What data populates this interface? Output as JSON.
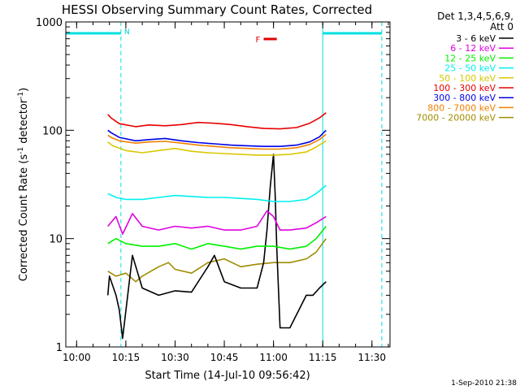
{
  "chart_data": {
    "type": "line",
    "title": "HESSI Observing Summary Count Rates, Corrected",
    "xlabel": "Start Time (14-Jul-10 09:56:42)",
    "ylabel_parts": [
      "Corrected Count Rate (s",
      "-1",
      " detector",
      "-1",
      ")"
    ],
    "y_scale": "log",
    "ylim": [
      1,
      1000
    ],
    "xlim": [
      "09:56:42",
      "11:35:30"
    ],
    "x_ticks": [
      "10:00",
      "10:15",
      "10:30",
      "10:45",
      "11:00",
      "11:15",
      "11:30"
    ],
    "y_ticks": [
      "1",
      "10",
      "100",
      "1000"
    ],
    "grid": false,
    "legend_position": "right",
    "legend_title": [
      "Det 1,3,4,5,6,9,",
      "Att 0"
    ],
    "footer": "1-Sep-2010 21:38",
    "annotations": {
      "night_bars": [
        {
          "from": "09:56:42",
          "to": "10:13:30",
          "label": "N"
        },
        {
          "from": "11:15:00",
          "to": "11:33:00",
          "label": ""
        }
      ],
      "flare_bar": {
        "from": "10:57:00",
        "to": "11:01:00",
        "label": "F"
      },
      "solid_lines": [
        "09:56:42",
        "11:15:00"
      ],
      "dashed_lines": [
        "10:13:30",
        "11:33:00"
      ]
    },
    "series": [
      {
        "name": "3 - 6 keV",
        "color": "#000000",
        "x": [
          "10:09:30",
          "10:10:00",
          "10:12:00",
          "10:13:00",
          "10:14:00",
          "10:17:00",
          "10:20:00",
          "10:25:00",
          "10:30:00",
          "10:35:00",
          "10:40:00",
          "10:42:00",
          "10:45:00",
          "10:50:00",
          "10:55:00",
          "10:57:00",
          "10:58:00",
          "10:59:00",
          "11:00:00",
          "11:00:30",
          "11:01:00",
          "11:02:00",
          "11:05:00",
          "11:10:00",
          "11:12:00",
          "11:14:00",
          "11:16:00"
        ],
        "y": [
          3,
          4.5,
          3,
          2.2,
          1.2,
          7,
          3.5,
          3,
          3.3,
          3.2,
          5.5,
          7,
          4,
          3.5,
          3.5,
          6,
          12,
          30,
          60,
          25,
          8,
          1.5,
          1.5,
          3,
          3,
          3.5,
          4
        ]
      },
      {
        "name": "6 - 12 keV",
        "color": "#e000e0",
        "x": [
          "10:09:30",
          "10:12:00",
          "10:14:00",
          "10:17:00",
          "10:20:00",
          "10:25:00",
          "10:30:00",
          "10:35:00",
          "10:40:00",
          "10:45:00",
          "10:50:00",
          "10:55:00",
          "10:58:00",
          "11:00:00",
          "11:02:00",
          "11:05:00",
          "11:10:00",
          "11:13:00",
          "11:16:00"
        ],
        "y": [
          13,
          16,
          11,
          17,
          13,
          12,
          13,
          12.5,
          13,
          12,
          12,
          13,
          18,
          16,
          12,
          12,
          12.5,
          14,
          16
        ]
      },
      {
        "name": "12 - 25 keV",
        "color": "#00f000",
        "x": [
          "10:09:30",
          "10:12:00",
          "10:15:00",
          "10:20:00",
          "10:25:00",
          "10:30:00",
          "10:35:00",
          "10:40:00",
          "10:45:00",
          "10:50:00",
          "10:55:00",
          "11:00:00",
          "11:05:00",
          "11:10:00",
          "11:13:00",
          "11:16:00"
        ],
        "y": [
          9,
          10,
          9,
          8.5,
          8.5,
          9,
          8,
          9,
          8.5,
          8,
          8.5,
          8.5,
          8,
          8.5,
          10,
          13
        ]
      },
      {
        "name": "25 - 50 keV",
        "color": "#00f0f0",
        "x": [
          "10:09:30",
          "10:12:00",
          "10:15:00",
          "10:20:00",
          "10:25:00",
          "10:30:00",
          "10:35:00",
          "10:40:00",
          "10:45:00",
          "10:50:00",
          "10:55:00",
          "11:00:00",
          "11:05:00",
          "11:10:00",
          "11:13:00",
          "11:16:00"
        ],
        "y": [
          26,
          24,
          23,
          23,
          24,
          25,
          24.5,
          24,
          24,
          23.5,
          23,
          22,
          22,
          23,
          26,
          31
        ]
      },
      {
        "name": "50 - 100 keV",
        "color": "#d8c800",
        "x": [
          "10:09:30",
          "10:11:00",
          "10:15:00",
          "10:20:00",
          "10:25:00",
          "10:30:00",
          "10:35:00",
          "10:40:00",
          "10:45:00",
          "10:50:00",
          "10:55:00",
          "11:00:00",
          "11:05:00",
          "11:10:00",
          "11:13:00",
          "11:16:00"
        ],
        "y": [
          78,
          72,
          65,
          62,
          65,
          68,
          64,
          62,
          61,
          60,
          59,
          59,
          60,
          63,
          70,
          80
        ]
      },
      {
        "name": "100 - 300 keV",
        "color": "#e80000",
        "x": [
          "10:09:30",
          "10:10:30",
          "10:13:00",
          "10:18:00",
          "10:22:00",
          "10:27:00",
          "10:32:00",
          "10:37:00",
          "10:42:00",
          "10:47:00",
          "10:52:00",
          "10:57:00",
          "11:02:00",
          "11:07:00",
          "11:11:00",
          "11:14:00",
          "11:16:00"
        ],
        "y": [
          140,
          130,
          115,
          108,
          112,
          110,
          113,
          118,
          116,
          113,
          108,
          104,
          103,
          106,
          116,
          130,
          145
        ]
      },
      {
        "name": "300 - 800 keV",
        "color": "#0000e8",
        "x": [
          "10:09:30",
          "10:10:30",
          "10:13:00",
          "10:18:00",
          "10:22:00",
          "10:27:00",
          "10:32:00",
          "10:37:00",
          "10:42:00",
          "10:47:00",
          "10:52:00",
          "10:57:00",
          "11:02:00",
          "11:07:00",
          "11:11:00",
          "11:14:00",
          "11:16:00"
        ],
        "y": [
          100,
          95,
          86,
          80,
          82,
          84,
          80,
          77,
          75,
          73,
          72,
          71,
          71,
          73,
          78,
          87,
          100
        ]
      },
      {
        "name": "800 - 7000 keV",
        "color": "#f08000",
        "x": [
          "10:09:30",
          "10:10:30",
          "10:13:00",
          "10:18:00",
          "10:22:00",
          "10:27:00",
          "10:32:00",
          "10:37:00",
          "10:42:00",
          "10:47:00",
          "10:52:00",
          "10:57:00",
          "11:02:00",
          "11:07:00",
          "11:11:00",
          "11:14:00",
          "11:16:00"
        ],
        "y": [
          90,
          86,
          80,
          76,
          78,
          79,
          76,
          73,
          71,
          69,
          68,
          67,
          67,
          69,
          74,
          82,
          92
        ]
      },
      {
        "name": "7000 - 20000 keV",
        "color": "#a08c00",
        "x": [
          "10:09:30",
          "10:12:00",
          "10:15:00",
          "10:18:00",
          "10:20:00",
          "10:25:00",
          "10:28:00",
          "10:30:00",
          "10:35:00",
          "10:40:00",
          "10:45:00",
          "10:50:00",
          "10:55:00",
          "11:00:00",
          "11:05:00",
          "11:10:00",
          "11:13:00",
          "11:16:00"
        ],
        "y": [
          5,
          4.5,
          4.8,
          4,
          4.5,
          5.5,
          6,
          5.2,
          4.8,
          6,
          6.5,
          5.5,
          5.8,
          6,
          6,
          6.5,
          7.5,
          10
        ]
      }
    ]
  }
}
